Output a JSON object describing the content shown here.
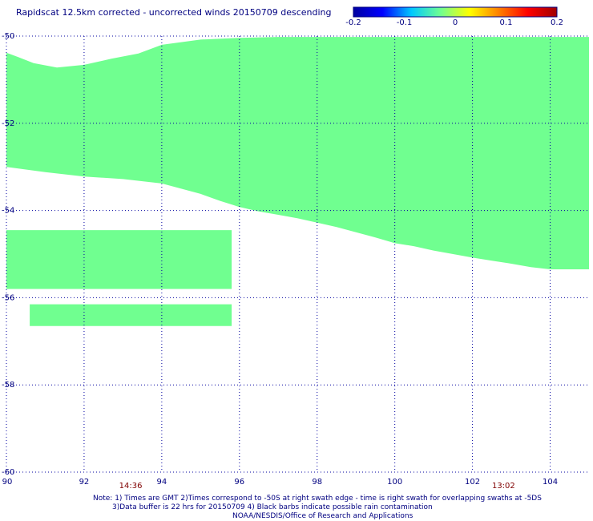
{
  "chart_data": {
    "type": "heatmap",
    "title": "Rapidscat 12.5km corrected - uncorrected winds 20150709 descending",
    "colorbar": {
      "ticks": [
        "-0.2",
        "-0.1",
        "0",
        "0.1",
        "0.2"
      ],
      "range": [
        -0.2,
        0.2
      ],
      "colors": [
        "#0000a0",
        "#0000ff",
        "#00c8ff",
        "#70ff90",
        "#ffff00",
        "#ff8000",
        "#ff0000",
        "#a00000"
      ]
    },
    "xlim": [
      90,
      105
    ],
    "ylim": [
      -60,
      -50
    ],
    "x_ticks": [
      "90",
      "92",
      "94",
      "96",
      "98",
      "100",
      "102",
      "104"
    ],
    "y_ticks": [
      "-50",
      "-52",
      "-54",
      "-56",
      "-58",
      "-60"
    ],
    "time_labels": [
      {
        "x": 93.2,
        "label": "14:36"
      },
      {
        "x": 102.8,
        "label": "13:02"
      }
    ],
    "grid": true,
    "fill_color": "#70ff90",
    "swaths": [
      {
        "name": "",
        "value": 0,
        "top": [
          [
            90,
            -50.38
          ],
          [
            90.3,
            -50.48
          ],
          [
            90.7,
            -50.62
          ],
          [
            91.3,
            -50.72
          ],
          [
            92,
            -50.66
          ],
          [
            92.7,
            -50.52
          ],
          [
            93.4,
            -50.4
          ],
          [
            94,
            -50.2
          ],
          [
            95,
            -50.08
          ],
          [
            96,
            -50.04
          ],
          [
            97,
            -50.02
          ],
          [
            98,
            -50.02
          ],
          [
            100,
            -50.02
          ],
          [
            102,
            -50.02
          ],
          [
            104,
            -50.02
          ],
          [
            105,
            -50.02
          ]
        ],
        "bottom": [
          [
            105,
            -55.35
          ],
          [
            104,
            -55.35
          ],
          [
            103.5,
            -55.3
          ],
          [
            103,
            -55.22
          ],
          [
            102.5,
            -55.15
          ],
          [
            102,
            -55.08
          ],
          [
            101.5,
            -55
          ],
          [
            101,
            -54.92
          ],
          [
            100.5,
            -54.82
          ],
          [
            100,
            -54.75
          ],
          [
            99.5,
            -54.62
          ],
          [
            99,
            -54.5
          ],
          [
            98.5,
            -54.38
          ],
          [
            98,
            -54.28
          ],
          [
            97.5,
            -54.18
          ],
          [
            97,
            -54.1
          ],
          [
            96.5,
            -54.02
          ],
          [
            96,
            -53.92
          ],
          [
            95.5,
            -53.78
          ],
          [
            95,
            -53.62
          ],
          [
            94.5,
            -53.5
          ],
          [
            94,
            -53.38
          ],
          [
            93,
            -53.28
          ],
          [
            92,
            -53.22
          ],
          [
            91,
            -53.12
          ],
          [
            90,
            -53.0
          ]
        ]
      },
      {
        "name": "",
        "value": 0,
        "top": [
          [
            90,
            -54.45
          ],
          [
            95.8,
            -54.45
          ]
        ],
        "bottom": [
          [
            95.8,
            -55.8
          ],
          [
            90,
            -55.8
          ]
        ]
      },
      {
        "name": "",
        "value": 0,
        "top": [
          [
            90.6,
            -56.15
          ],
          [
            95.8,
            -56.15
          ]
        ],
        "bottom": [
          [
            95.8,
            -56.65
          ],
          [
            90.6,
            -56.65
          ]
        ]
      }
    ]
  },
  "notes": [
    "Note: 1) Times are GMT 2)Times correspond to -50S at right swath edge - time is right swath for overlapping swaths at -5DS",
    "3)Data buffer is 22 hrs for 20150709 4) Black barbs indicate possible rain contamination",
    "NOAA/NESDIS/Office of Research and Applications"
  ]
}
